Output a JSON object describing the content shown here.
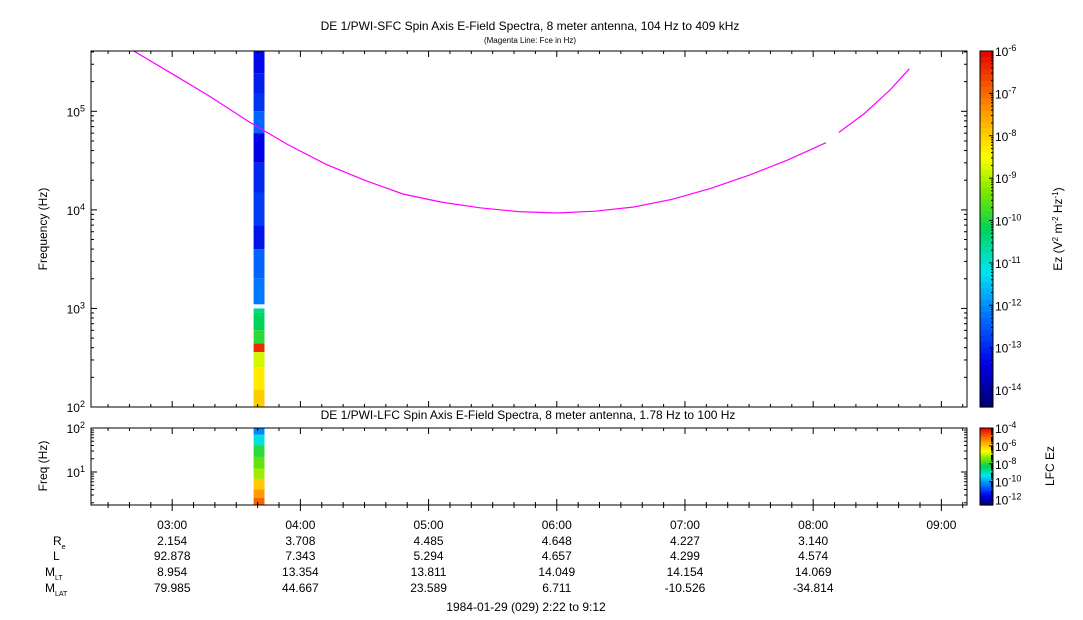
{
  "chart_data": [
    {
      "type": "heatmap",
      "title": "DE 1/PWI-SFC  Spin Axis E-Field Spectra, 8 meter antenna, 104 Hz to 409 kHz",
      "subtitle": "(Magenta Line: Fce in Hz)",
      "ylabel": "Frequency (Hz)",
      "ylim_hz": [
        100,
        409000
      ],
      "yscale": "log",
      "yticks": [
        {
          "value": 100,
          "base": "10",
          "exp": "2"
        },
        {
          "value": 1000,
          "base": "10",
          "exp": "3"
        },
        {
          "value": 10000,
          "base": "10",
          "exp": "4"
        },
        {
          "value": 100000,
          "base": "10",
          "exp": "5"
        }
      ],
      "xlim_hours": [
        2.3667,
        9.2
      ],
      "colorbar": {
        "label": "Ez (V² m⁻² Hz⁻¹)",
        "label_parts": {
          "a": "Ez (V",
          "b": "2",
          "c": " m",
          "d": "-2",
          "e": " Hz",
          "f": "-1",
          "g": ")"
        },
        "scale": "log",
        "range_exp": [
          -14.4,
          -6
        ],
        "ticks": [
          {
            "exp": -6,
            "label": "-6"
          },
          {
            "exp": -7,
            "label": "-7"
          },
          {
            "exp": -8,
            "label": "-8"
          },
          {
            "exp": -9,
            "label": "-9"
          },
          {
            "exp": -10,
            "label": "-10"
          },
          {
            "exp": -11,
            "label": "-11"
          },
          {
            "exp": -12,
            "label": "-12"
          },
          {
            "exp": -13,
            "label": "-13"
          },
          {
            "exp": -14,
            "label": "-14"
          }
        ]
      },
      "data_column": {
        "time_start_hours": 3.635,
        "time_end_hours": 3.72,
        "cells": [
          {
            "f_lo": 240000,
            "f_hi": 409000,
            "log_value": -13.3
          },
          {
            "f_lo": 150000,
            "f_hi": 240000,
            "log_value": -13.1
          },
          {
            "f_lo": 100000,
            "f_hi": 150000,
            "log_value": -12.9
          },
          {
            "f_lo": 60000,
            "f_hi": 100000,
            "log_value": -12.4
          },
          {
            "f_lo": 30000,
            "f_hi": 60000,
            "log_value": -13.4
          },
          {
            "f_lo": 15000,
            "f_hi": 30000,
            "log_value": -13.0
          },
          {
            "f_lo": 7000,
            "f_hi": 15000,
            "log_value": -12.8
          },
          {
            "f_lo": 4000,
            "f_hi": 7000,
            "log_value": -13.2
          },
          {
            "f_lo": 2000,
            "f_hi": 4000,
            "log_value": -12.4
          },
          {
            "f_lo": 1100,
            "f_hi": 2000,
            "log_value": -12.2
          },
          {
            "f_lo": 900,
            "f_hi": 1000,
            "log_value": -10.5
          },
          {
            "f_lo": 600,
            "f_hi": 900,
            "log_value": -10.2
          },
          {
            "f_lo": 440,
            "f_hi": 600,
            "log_value": -9.9
          },
          {
            "f_lo": 360,
            "f_hi": 440,
            "log_value": -6.4
          },
          {
            "f_lo": 250,
            "f_hi": 360,
            "log_value": -8.8
          },
          {
            "f_lo": 150,
            "f_hi": 250,
            "log_value": -8.3
          },
          {
            "f_lo": 100,
            "f_hi": 150,
            "log_value": -8.0
          }
        ]
      },
      "fce_line": {
        "name": "Fce",
        "color": "#ff00ff",
        "x_hours": [
          2.7,
          3.0,
          3.3,
          3.6,
          3.9,
          4.2,
          4.5,
          4.8,
          5.1,
          5.4,
          5.7,
          6.0,
          6.3,
          6.6,
          6.9,
          7.2,
          7.5,
          7.8,
          8.1
        ],
        "y_hz": [
          409000,
          240000,
          140000,
          78000,
          46000,
          29000,
          20000,
          14500,
          12000,
          10500,
          9600,
          9300,
          9700,
          10700,
          12800,
          16500,
          22500,
          32000,
          48000
        ],
        "x2_hours": [
          8.2,
          8.4,
          8.6,
          8.75
        ],
        "y2_hz": [
          61000,
          95000,
          165000,
          270000
        ]
      }
    },
    {
      "type": "heatmap",
      "title": "DE 1/PWI-LFC  Spin Axis E-Field Spectra, 8 meter antenna, 1.78 Hz to 100 Hz",
      "ylabel": "Freq (Hz)",
      "ylim_hz": [
        1.78,
        100
      ],
      "yscale": "log",
      "yticks": [
        {
          "value": 10,
          "base": "10",
          "exp": "1"
        },
        {
          "value": 100,
          "base": "10",
          "exp": "2"
        }
      ],
      "xlim_hours": [
        2.3667,
        9.2
      ],
      "colorbar": {
        "label": "LFC Ez",
        "scale": "log",
        "range_exp": [
          -12.6,
          -4
        ],
        "ticks": [
          {
            "exp": -4,
            "label": "-4"
          },
          {
            "exp": -6,
            "label": "-6"
          },
          {
            "exp": -8,
            "label": "-8"
          },
          {
            "exp": -10,
            "label": "-10"
          },
          {
            "exp": -12,
            "label": "-12"
          }
        ]
      },
      "data_column": {
        "time_start_hours": 3.635,
        "time_end_hours": 3.72,
        "cells": [
          {
            "f_lo": 70,
            "f_hi": 100,
            "log_value": -10.2
          },
          {
            "f_lo": 40,
            "f_hi": 70,
            "log_value": -9.2
          },
          {
            "f_lo": 22,
            "f_hi": 40,
            "log_value": -8.0
          },
          {
            "f_lo": 12,
            "f_hi": 22,
            "log_value": -7.6
          },
          {
            "f_lo": 7,
            "f_hi": 12,
            "log_value": -7.2
          },
          {
            "f_lo": 4,
            "f_hi": 7,
            "log_value": -6.0
          },
          {
            "f_lo": 2.6,
            "f_hi": 4,
            "log_value": -5.5
          },
          {
            "f_lo": 1.78,
            "f_hi": 2.6,
            "log_value": -5.0
          }
        ]
      }
    }
  ],
  "x_axis": {
    "ticks": [
      {
        "hours": 3,
        "label": "03:00"
      },
      {
        "hours": 4,
        "label": "04:00"
      },
      {
        "hours": 5,
        "label": "05:00"
      },
      {
        "hours": 6,
        "label": "06:00"
      },
      {
        "hours": 7,
        "label": "07:00"
      },
      {
        "hours": 8,
        "label": "08:00"
      },
      {
        "hours": 9,
        "label": "09:00"
      }
    ],
    "footer": "1984-01-29 (029) 2:22 to 9:12"
  },
  "ephemeris": [
    {
      "label": "R",
      "sub": "e",
      "values": [
        "2.154",
        "3.708",
        "4.485",
        "4.648",
        "4.227",
        "3.140"
      ]
    },
    {
      "label": "L",
      "sub": "",
      "values": [
        "92.878",
        "7.343",
        "5.294",
        "4.657",
        "4.299",
        "4.574"
      ]
    },
    {
      "label": "M",
      "sub": "LT",
      "values": [
        "8.954",
        "13.354",
        "13.811",
        "14.049",
        "14.154",
        "14.069"
      ]
    },
    {
      "label": "M",
      "sub": "LAT",
      "values": [
        "79.985",
        "44.667",
        "23.589",
        "6.711",
        "-10.526",
        "-34.814"
      ]
    }
  ]
}
